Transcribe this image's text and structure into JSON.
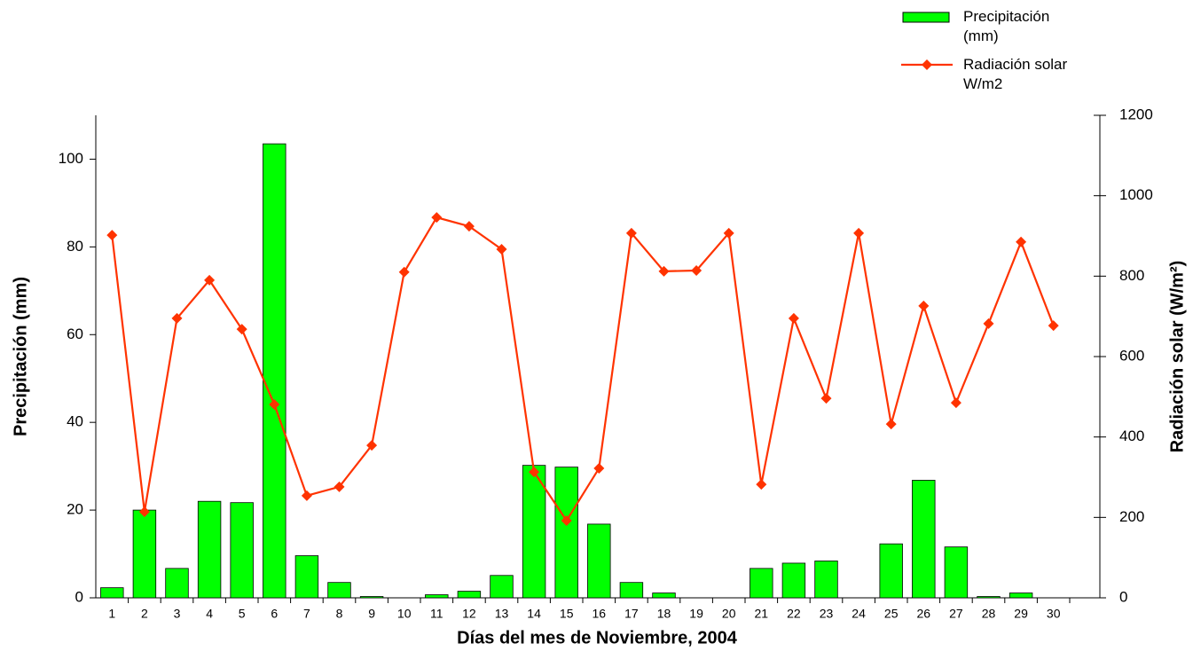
{
  "chart_data": {
    "type": "bar-line",
    "x_label": "Días del mes de Noviembre, 2004",
    "y_label": "Precipitación (mm)",
    "y2_label": "Radiación solar (W/m²)",
    "categories": [
      "1",
      "2",
      "3",
      "4",
      "5",
      "6",
      "7",
      "8",
      "9",
      "10",
      "11",
      "12",
      "13",
      "14",
      "15",
      "16",
      "17",
      "18",
      "19",
      "20",
      "21",
      "22",
      "23",
      "24",
      "25",
      "26",
      "27",
      "28",
      "29",
      "30"
    ],
    "series": [
      {
        "name": "Precipitación (mm)",
        "type": "bar",
        "color": "#00ff00",
        "values": [
          2.3,
          20,
          6.7,
          22,
          21.7,
          103.5,
          9.6,
          3.5,
          0.3,
          0,
          0.7,
          1.5,
          5.1,
          30.2,
          29.8,
          16.8,
          3.5,
          1.1,
          0,
          0,
          6.7,
          7.9,
          8.4,
          0,
          12.3,
          26.8,
          11.6,
          0.3,
          1.1,
          0
        ]
      },
      {
        "name": "Radiación solar W/m2",
        "type": "line",
        "axis": "y2",
        "color": "#ff3300",
        "values": [
          902,
          214,
          695,
          790,
          668,
          481,
          254,
          276,
          379,
          810,
          946,
          924,
          867,
          313,
          192,
          322,
          907,
          812,
          814,
          907,
          282,
          695,
          496,
          907,
          432,
          726,
          485,
          682,
          885,
          677
        ]
      }
    ],
    "ylim": [
      0,
      110
    ],
    "yticks": [
      0,
      20,
      40,
      60,
      80,
      100
    ],
    "y2lim": [
      0,
      1200
    ],
    "y2ticks": [
      0,
      200,
      400,
      600,
      800,
      1000,
      1200
    ],
    "legend": "top-right"
  }
}
